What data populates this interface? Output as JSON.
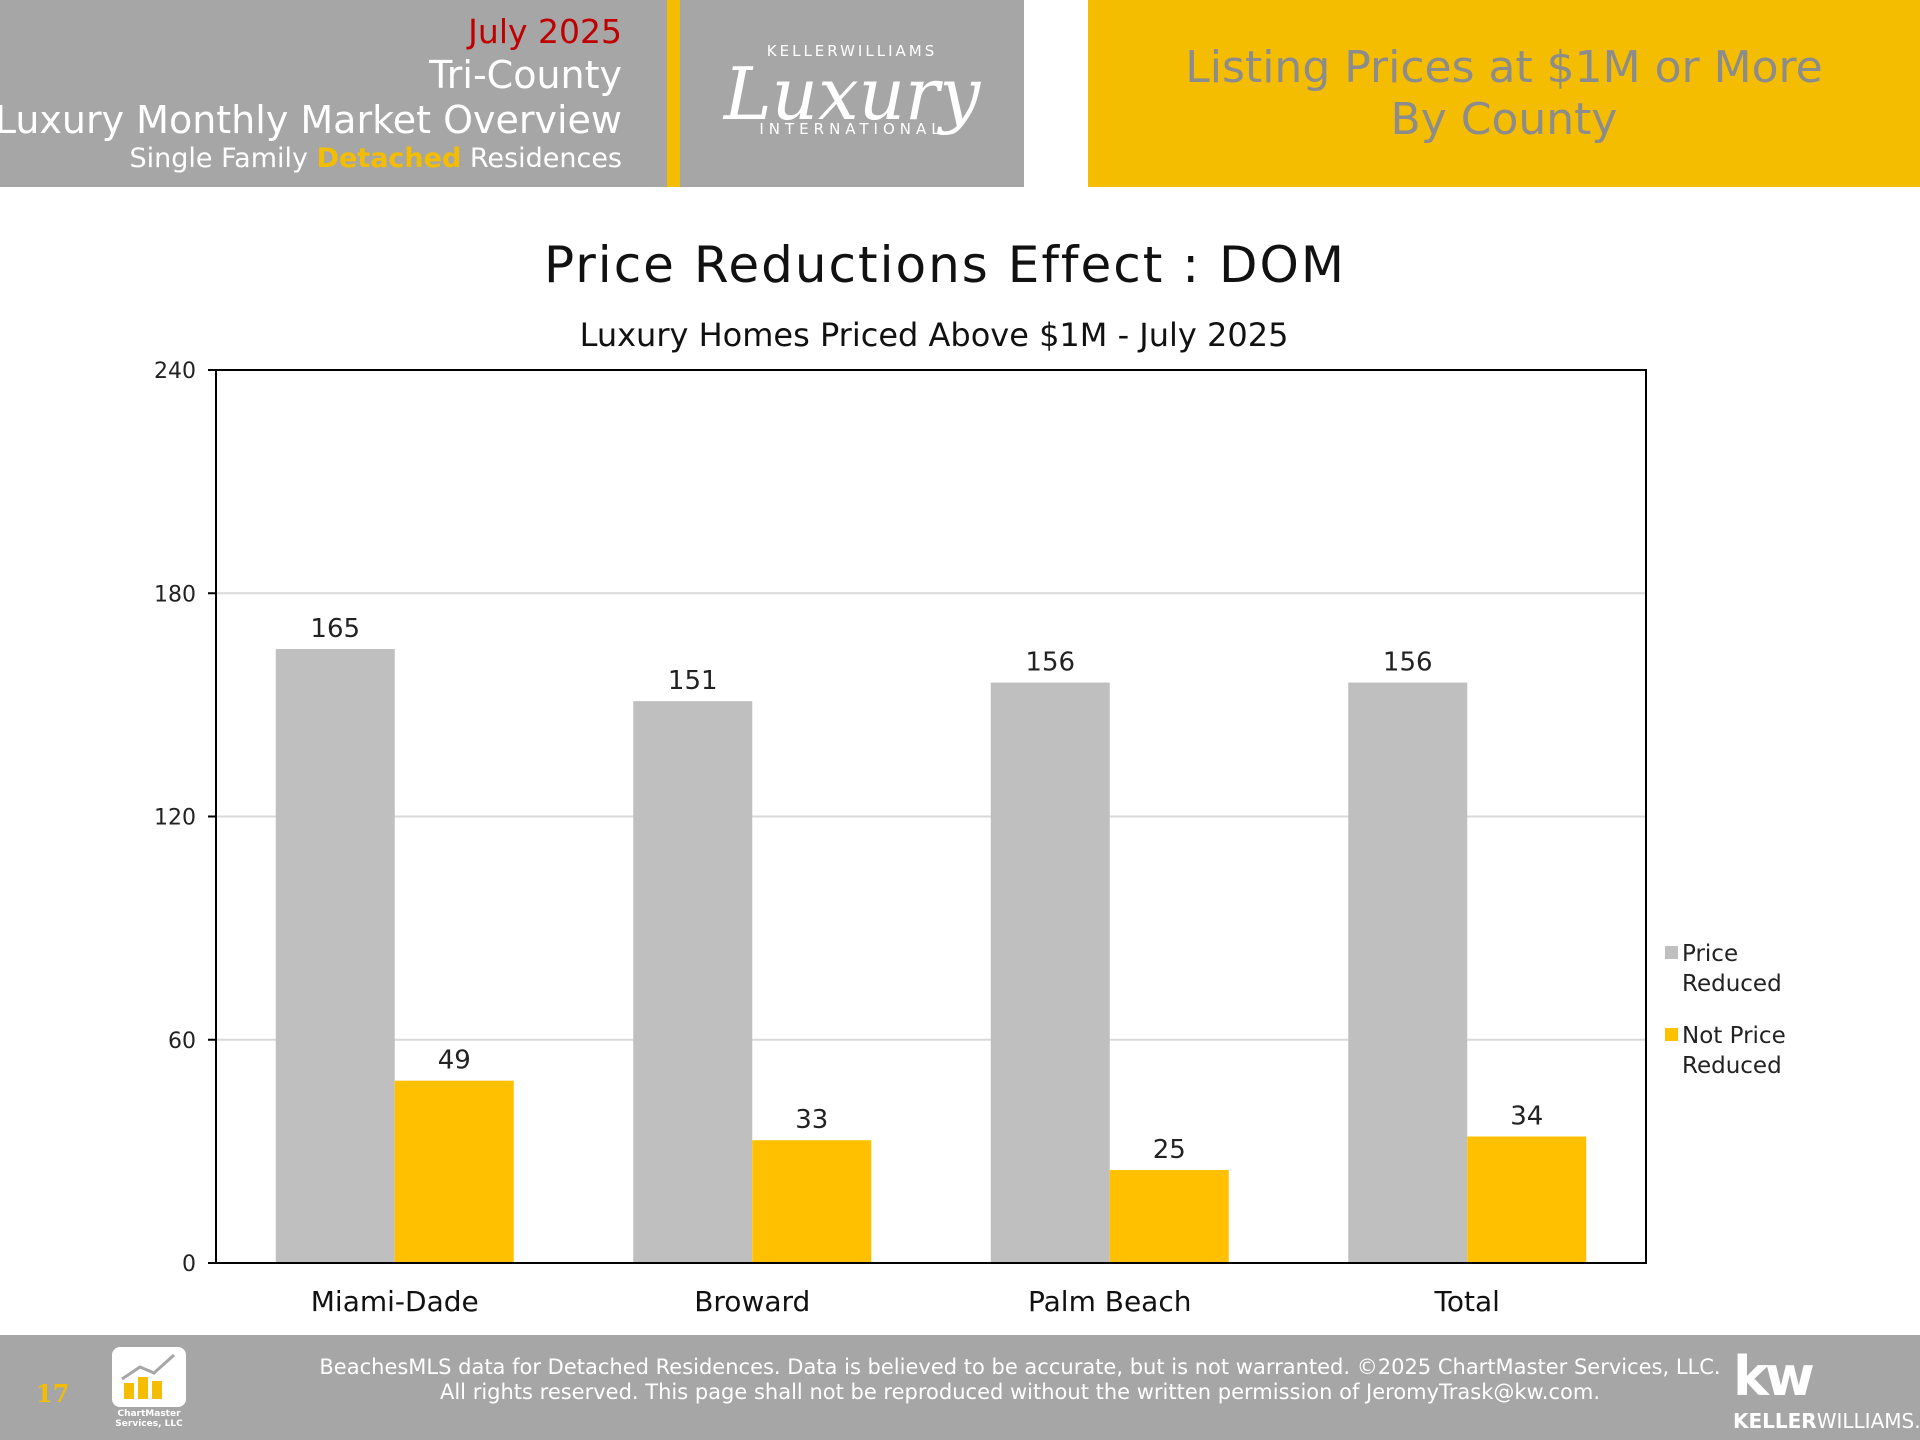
{
  "header": {
    "month": "July 2025",
    "region": "Tri-County",
    "report": "Luxury Monthly Market Overview",
    "segment_pre": "Single Family ",
    "segment_hl": "Detached",
    "segment_post": " Residences",
    "logo_top": "KELLERWILLIAMS",
    "logo_script": "Luxury",
    "logo_bottom": "INTERNATIONAL",
    "right_line1": "Listing Prices at $1M or More",
    "right_line2": "By County"
  },
  "chart_data": {
    "type": "bar",
    "title": "Price Reductions Effect : DOM",
    "subtitle": "Luxury Homes Priced Above $1M - July 2025",
    "categories": [
      "Miami-Dade",
      "Broward",
      "Palm Beach",
      "Total"
    ],
    "series": [
      {
        "name": "Price Reduced",
        "legend": [
          "Price",
          "Reduced"
        ],
        "values": [
          165,
          151,
          156,
          156
        ],
        "color": "#bfbfbf"
      },
      {
        "name": "Not Price Reduced",
        "legend": [
          "Not Price",
          "Reduced"
        ],
        "values": [
          49,
          33,
          25,
          34
        ],
        "color": "#ffc000"
      }
    ],
    "ylim": [
      0,
      240
    ],
    "yticks": [
      "0",
      "60",
      "120",
      "180",
      "240"
    ],
    "grid": true,
    "legend_position": "right"
  },
  "footer": {
    "page": "17",
    "cm_logo_text": "ChartMaster Services, LLC",
    "note_line1": "BeachesMLS data for Detached Residences.  Data is believed to be accurate, but is not warranted.   ©2025  ChartMaster Services, LLC.",
    "note_line2": "All rights reserved. This page shall not be reproduced without the written permission of JeromyTrask@kw.com.",
    "kw_mark": "kw",
    "kw_name_bold": "KELLER",
    "kw_name_rest": "WILLIAMS."
  },
  "colors": {
    "gray": "#a6a6a6",
    "gold": "#f5bd00",
    "red": "#c00000"
  }
}
